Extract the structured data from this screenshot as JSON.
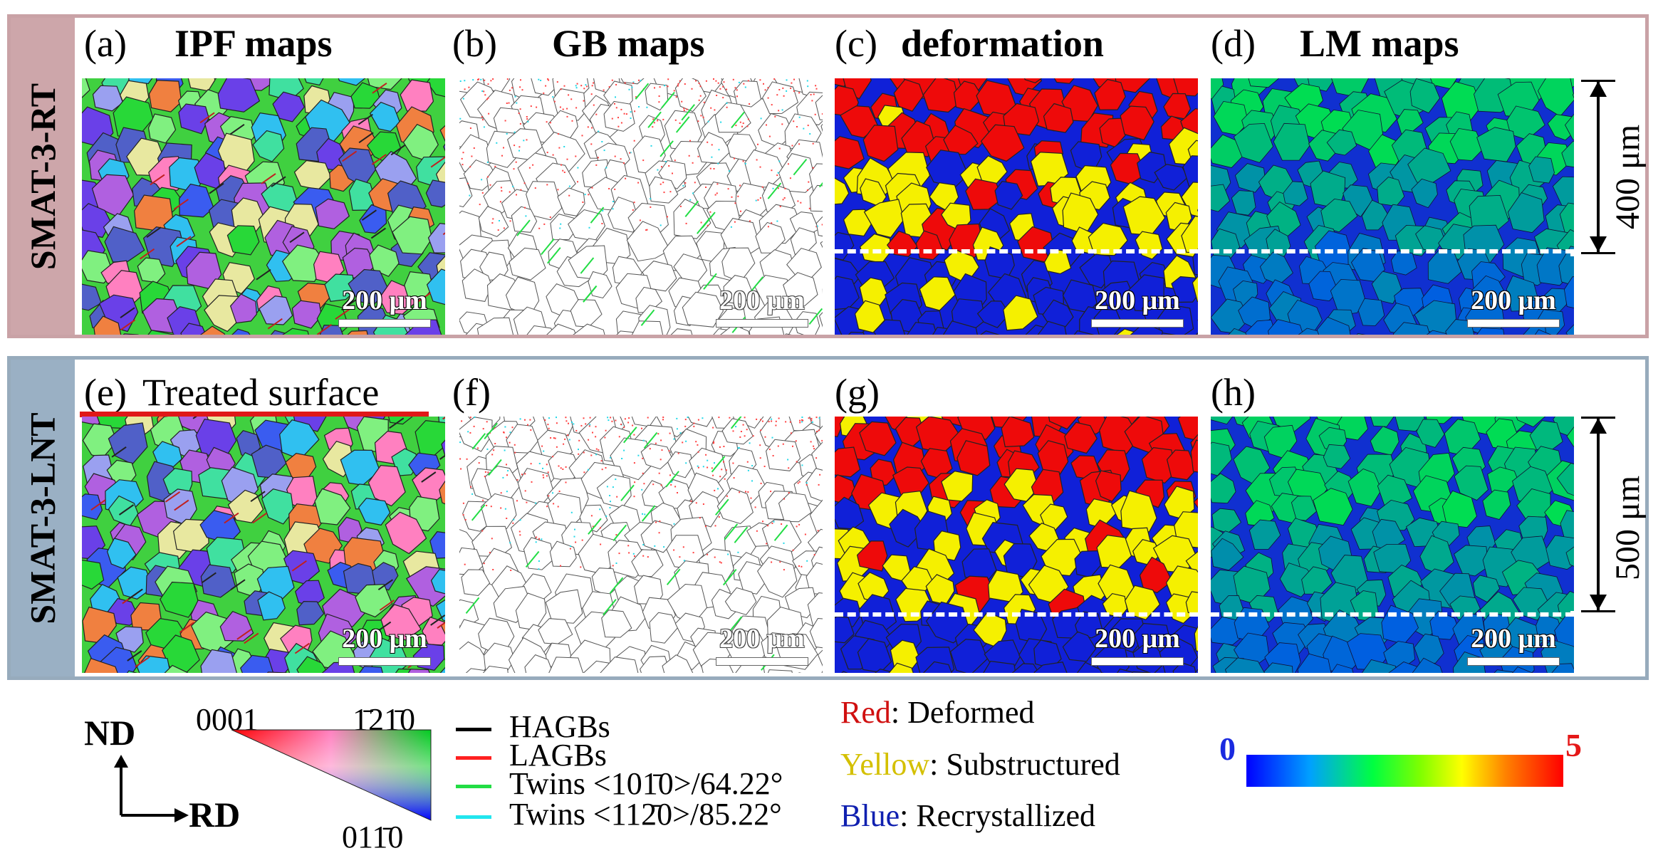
{
  "rows": [
    {
      "label": "SMAT-3-RT",
      "depth": "400 μm"
    },
    {
      "label": "SMAT-3-LNT",
      "depth": "500 μm"
    }
  ],
  "panels": {
    "a": {
      "letter": "(a)",
      "title": "IPF maps"
    },
    "b": {
      "letter": "(b)",
      "title": "GB maps"
    },
    "c": {
      "letter": "(c)",
      "title": "deformation"
    },
    "d": {
      "letter": "(d)",
      "title": "LM maps"
    },
    "e": {
      "letter": "(e)",
      "title": "Treated surface"
    },
    "f": {
      "letter": "(f)",
      "title": ""
    },
    "g": {
      "letter": "(g)",
      "title": ""
    },
    "h": {
      "letter": "(h)",
      "title": ""
    }
  },
  "scale_bar": "200 μm",
  "ipf_legend": {
    "axis_y": "ND",
    "axis_x": "RD",
    "corner_top_left": "0001",
    "corner_top_right": "1̄21̄0",
    "corner_bottom": "011̄0"
  },
  "gb_legend": [
    {
      "label": "HAGBs",
      "color": "#000000"
    },
    {
      "label": "LAGBs",
      "color": "#ff2020"
    },
    {
      "label": "Twins <101̄0>/64.22°",
      "color": "#22dd44"
    },
    {
      "label": "Twins <112̄0>/85.22°",
      "color": "#22e6ee"
    }
  ],
  "deformation_legend": [
    {
      "key": "Red",
      "desc": ": Deformed",
      "color": "#d01010"
    },
    {
      "key": "Yellow",
      "desc": ": Substructured",
      "color": "#d4c000"
    },
    {
      "key": "Blue",
      "desc": ": Recrystallized",
      "color": "#1020b0"
    }
  ],
  "lm_colorbar": {
    "min": "0",
    "max": "5"
  }
}
